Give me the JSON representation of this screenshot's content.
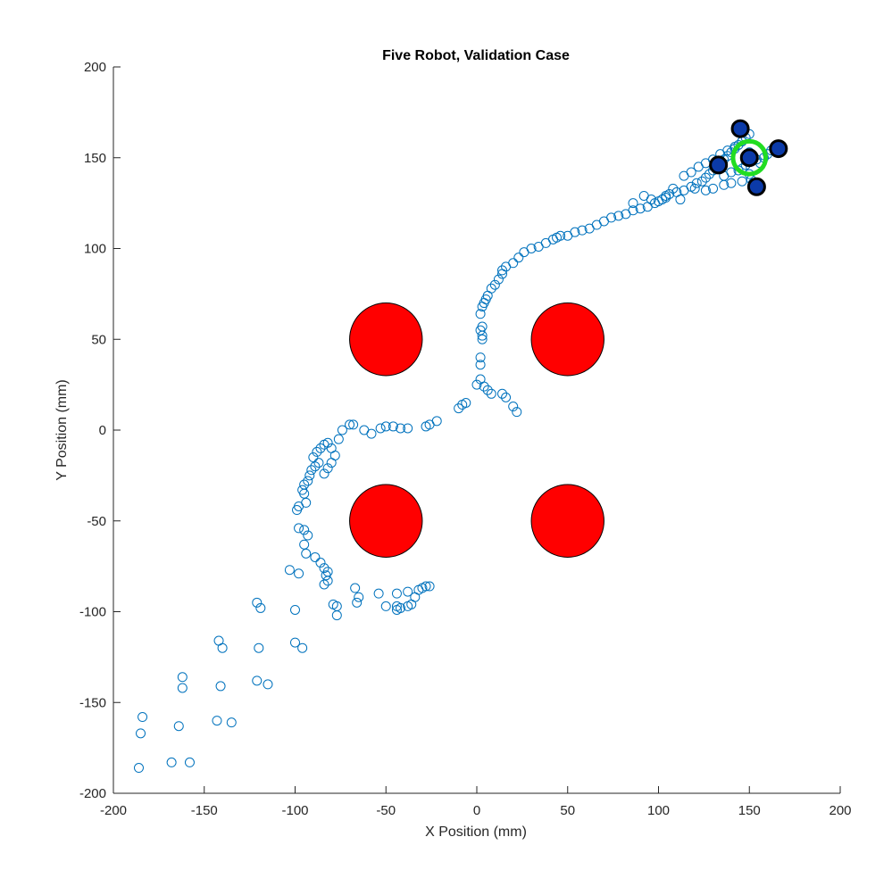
{
  "chart_data": {
    "type": "scatter",
    "title": "Five Robot, Validation Case",
    "xlabel": "X Position (mm)",
    "ylabel": "Y Position (mm)",
    "xlim": [
      -200,
      200
    ],
    "ylim": [
      -200,
      200
    ],
    "xticks": [
      -200,
      -150,
      -100,
      -50,
      0,
      50,
      100,
      150,
      200
    ],
    "yticks": [
      -200,
      -150,
      -100,
      -50,
      0,
      50,
      100,
      150,
      200
    ],
    "grid": false,
    "colors": {
      "trail": "#0072bd",
      "obstacle_fill": "#ff0000",
      "obstacle_edge": "#000000",
      "robot_fill": "#0b3aa8",
      "robot_edge": "#000000",
      "goal": "#22dd22"
    },
    "obstacles": [
      {
        "x": -50,
        "y": 50,
        "r": 20
      },
      {
        "x": 50,
        "y": 50,
        "r": 20
      },
      {
        "x": -50,
        "y": -50,
        "r": 20
      },
      {
        "x": 50,
        "y": -50,
        "r": 20
      }
    ],
    "goal": {
      "x": 150,
      "y": 150,
      "r": 9
    },
    "robots": [
      {
        "x": 145,
        "y": 166
      },
      {
        "x": 166,
        "y": 155
      },
      {
        "x": 150,
        "y": 150
      },
      {
        "x": 133,
        "y": 146
      },
      {
        "x": 154,
        "y": 134
      }
    ],
    "trail_points": [
      [
        -186,
        -186
      ],
      [
        -184,
        -158
      ],
      [
        -185,
        -167
      ],
      [
        -168,
        -183
      ],
      [
        -158,
        -183
      ],
      [
        -164,
        -163
      ],
      [
        -162,
        -136
      ],
      [
        -162,
        -142
      ],
      [
        -143,
        -160
      ],
      [
        -135,
        -161
      ],
      [
        -141,
        -141
      ],
      [
        -142,
        -116
      ],
      [
        -140,
        -120
      ],
      [
        -121,
        -95
      ],
      [
        -119,
        -98
      ],
      [
        -120,
        -120
      ],
      [
        -121,
        -138
      ],
      [
        -115,
        -140
      ],
      [
        -100,
        -99
      ],
      [
        -100,
        -117
      ],
      [
        -96,
        -120
      ],
      [
        -103,
        -77
      ],
      [
        -98,
        -79
      ],
      [
        -77,
        -97
      ],
      [
        -79,
        -96
      ],
      [
        -77,
        -102
      ],
      [
        -84,
        -85
      ],
      [
        -82,
        -83
      ],
      [
        -83,
        -80
      ],
      [
        -82,
        -78
      ],
      [
        -84,
        -76
      ],
      [
        -86,
        -73
      ],
      [
        -89,
        -70
      ],
      [
        -94,
        -68
      ],
      [
        -95,
        -63
      ],
      [
        -93,
        -58
      ],
      [
        -95,
        -55
      ],
      [
        -98,
        -54
      ],
      [
        -94,
        -40
      ],
      [
        -95,
        -35
      ],
      [
        -99,
        -44
      ],
      [
        -98,
        -42
      ],
      [
        -96,
        -33
      ],
      [
        -95,
        -30
      ],
      [
        -93,
        -28
      ],
      [
        -92,
        -25
      ],
      [
        -91,
        -22
      ],
      [
        -89,
        -20
      ],
      [
        -87,
        -18
      ],
      [
        -90,
        -15
      ],
      [
        -88,
        -12
      ],
      [
        -86,
        -10
      ],
      [
        -84,
        -8
      ],
      [
        -82,
        -7
      ],
      [
        -80,
        -10
      ],
      [
        -78,
        -14
      ],
      [
        -80,
        -18
      ],
      [
        -82,
        -21
      ],
      [
        -84,
        -24
      ],
      [
        -76,
        -5
      ],
      [
        -74,
        0
      ],
      [
        -70,
        3
      ],
      [
        -68,
        3
      ],
      [
        -62,
        0
      ],
      [
        -58,
        -2
      ],
      [
        -53,
        1
      ],
      [
        -50,
        2
      ],
      [
        -46,
        2
      ],
      [
        -42,
        1
      ],
      [
        -38,
        1
      ],
      [
        -28,
        2
      ],
      [
        -26,
        3
      ],
      [
        -22,
        5
      ],
      [
        -10,
        12
      ],
      [
        -8,
        14
      ],
      [
        -6,
        15
      ],
      [
        -67,
        -87
      ],
      [
        -65,
        -92
      ],
      [
        -66,
        -95
      ],
      [
        -54,
        -90
      ],
      [
        -50,
        -97
      ],
      [
        -44,
        -97
      ],
      [
        -44,
        -99
      ],
      [
        -42,
        -98
      ],
      [
        -38,
        -97
      ],
      [
        -36,
        -96
      ],
      [
        -34,
        -92
      ],
      [
        -32,
        -88
      ],
      [
        -30,
        -87
      ],
      [
        -28,
        -86
      ],
      [
        -44,
        -90
      ],
      [
        -38,
        -89
      ],
      [
        -26,
        -86
      ],
      [
        0,
        25
      ],
      [
        2,
        28
      ],
      [
        4,
        24
      ],
      [
        6,
        22
      ],
      [
        8,
        20
      ],
      [
        14,
        20
      ],
      [
        16,
        18
      ],
      [
        20,
        13
      ],
      [
        22,
        10
      ],
      [
        2,
        36
      ],
      [
        2,
        40
      ],
      [
        3,
        50
      ],
      [
        3,
        52
      ],
      [
        2,
        55
      ],
      [
        3,
        57
      ],
      [
        2,
        64
      ],
      [
        3,
        68
      ],
      [
        4,
        70
      ],
      [
        5,
        72
      ],
      [
        6,
        74
      ],
      [
        8,
        78
      ],
      [
        10,
        80
      ],
      [
        12,
        83
      ],
      [
        14,
        86
      ],
      [
        14,
        88
      ],
      [
        16,
        90
      ],
      [
        20,
        92
      ],
      [
        23,
        95
      ],
      [
        26,
        98
      ],
      [
        30,
        100
      ],
      [
        34,
        101
      ],
      [
        38,
        103
      ],
      [
        42,
        105
      ],
      [
        44,
        106
      ],
      [
        46,
        107
      ],
      [
        50,
        107
      ],
      [
        54,
        109
      ],
      [
        58,
        110
      ],
      [
        62,
        111
      ],
      [
        66,
        113
      ],
      [
        70,
        115
      ],
      [
        74,
        117
      ],
      [
        78,
        118
      ],
      [
        82,
        119
      ],
      [
        86,
        121
      ],
      [
        90,
        122
      ],
      [
        94,
        123
      ],
      [
        98,
        125
      ],
      [
        102,
        127
      ],
      [
        104,
        129
      ],
      [
        106,
        130
      ],
      [
        110,
        131
      ],
      [
        114,
        132
      ],
      [
        118,
        134
      ],
      [
        121,
        136
      ],
      [
        124,
        137
      ],
      [
        126,
        139
      ],
      [
        128,
        141
      ],
      [
        130,
        143
      ],
      [
        132,
        145
      ],
      [
        134,
        147
      ],
      [
        136,
        149
      ],
      [
        138,
        151
      ],
      [
        140,
        153
      ],
      [
        142,
        155
      ],
      [
        144,
        157
      ],
      [
        146,
        159
      ],
      [
        148,
        161
      ],
      [
        150,
        163
      ],
      [
        146,
        137
      ],
      [
        140,
        136
      ],
      [
        136,
        135
      ],
      [
        130,
        133
      ],
      [
        126,
        132
      ],
      [
        120,
        133
      ],
      [
        112,
        127
      ],
      [
        104,
        128
      ],
      [
        100,
        126
      ],
      [
        96,
        127
      ],
      [
        92,
        129
      ],
      [
        86,
        125
      ],
      [
        108,
        133
      ],
      [
        114,
        140
      ],
      [
        118,
        142
      ],
      [
        122,
        145
      ],
      [
        126,
        147
      ],
      [
        130,
        149
      ],
      [
        134,
        152
      ],
      [
        138,
        154
      ],
      [
        142,
        156
      ],
      [
        146,
        159
      ],
      [
        150,
        153
      ],
      [
        152,
        151
      ],
      [
        154,
        149
      ],
      [
        156,
        147
      ],
      [
        158,
        150
      ],
      [
        160,
        152
      ],
      [
        162,
        154
      ],
      [
        164,
        155
      ],
      [
        150,
        141
      ],
      [
        151,
        138
      ],
      [
        152,
        136
      ],
      [
        148,
        146
      ],
      [
        146,
        144
      ],
      [
        144,
        143
      ],
      [
        140,
        142
      ],
      [
        136,
        140
      ]
    ]
  }
}
